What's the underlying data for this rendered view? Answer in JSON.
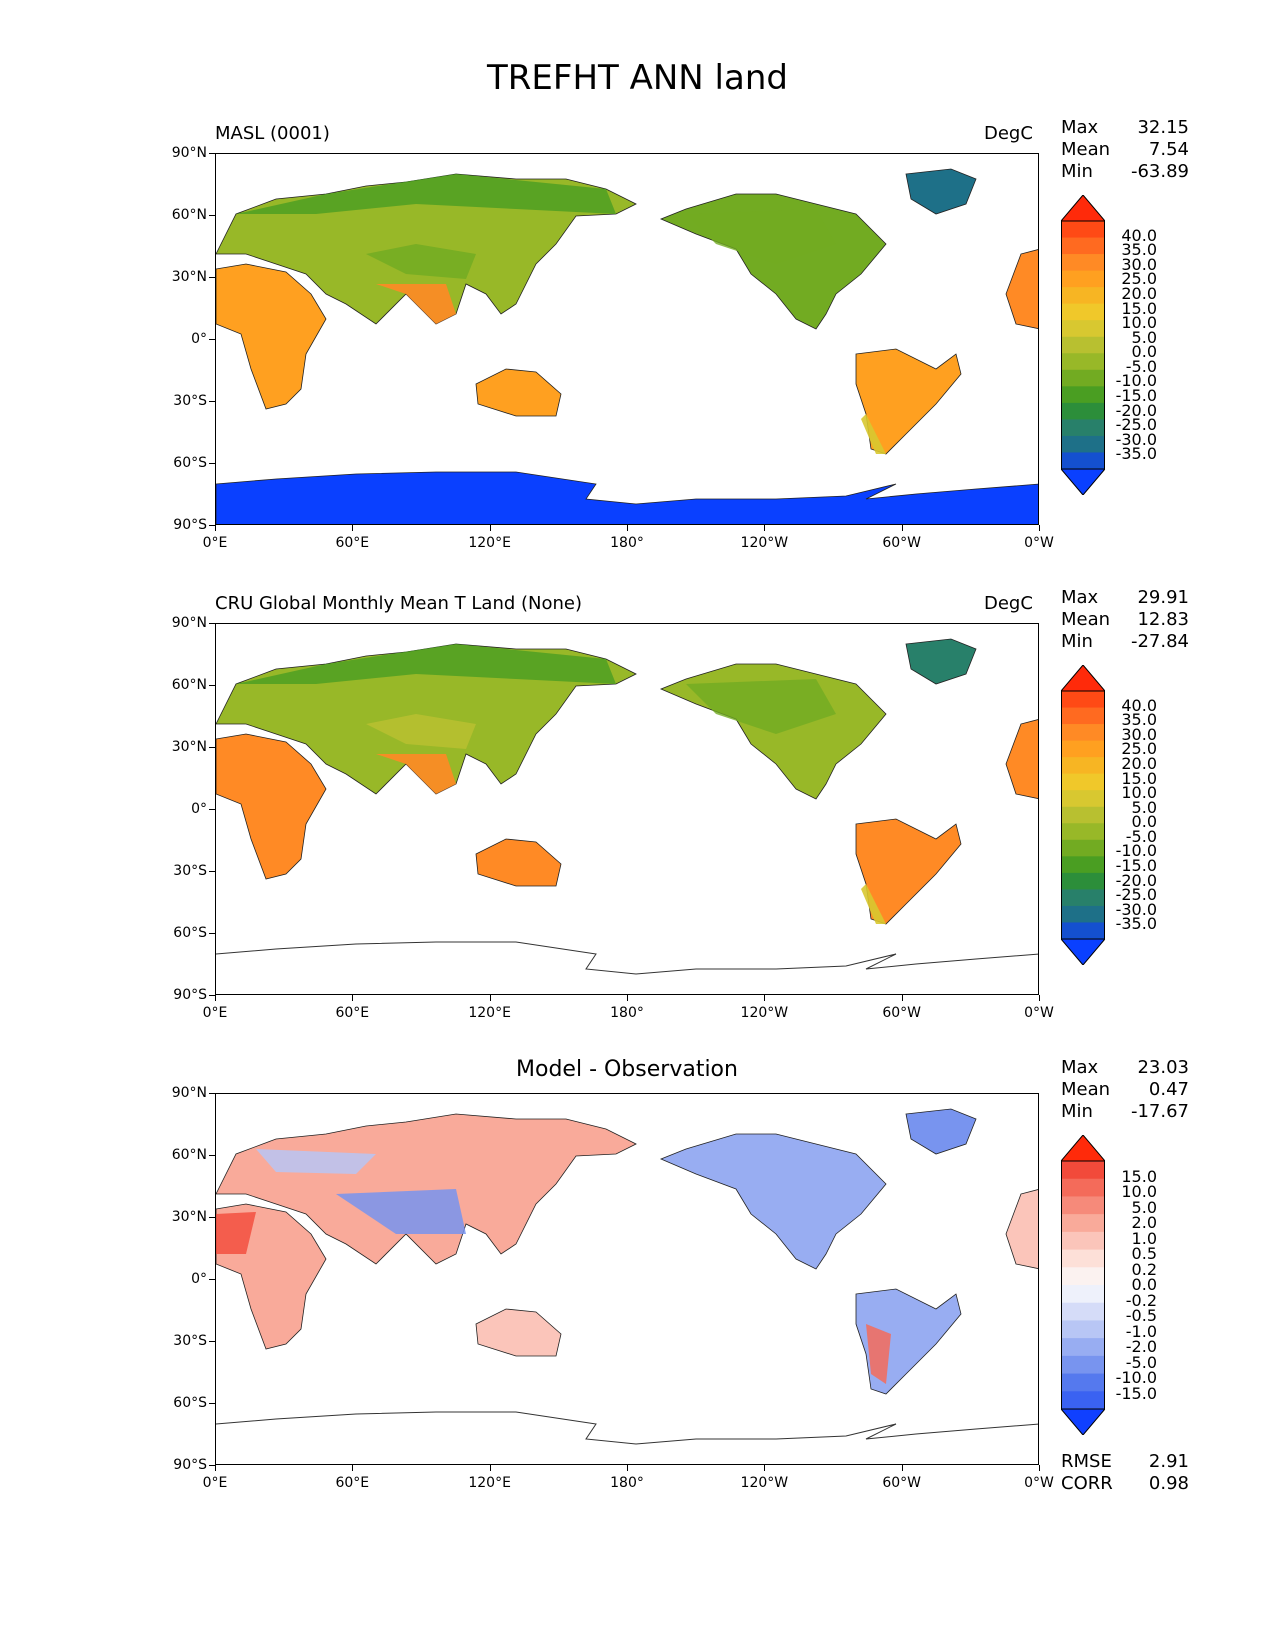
{
  "figure_title": "TREFHT ANN land",
  "axes": {
    "y_ticks": [
      "90°N",
      "60°N",
      "30°N",
      "0°",
      "30°S",
      "60°S",
      "90°S"
    ],
    "x_ticks": [
      "0°E",
      "60°E",
      "120°E",
      "180°",
      "120°W",
      "60°W",
      "0°W"
    ]
  },
  "panels": [
    {
      "id": "model",
      "title": "MASL (0001)",
      "units": "DegC",
      "stats": [
        {
          "k": "Max",
          "v": "32.15"
        },
        {
          "k": "Mean",
          "v": "7.54"
        },
        {
          "k": "Min",
          "v": "-63.89"
        }
      ],
      "colorbar": {
        "labels": [
          "40.0",
          "35.0",
          "30.0",
          "25.0",
          "20.0",
          "15.0",
          "10.0",
          "5.0",
          "0.0",
          "-5.0",
          "-10.0",
          "-15.0",
          "-20.0",
          "-25.0",
          "-30.0",
          "-35.0"
        ],
        "colors": [
          "#ff2a0a",
          "#ff4a15",
          "#ff6a20",
          "#ff8a25",
          "#ffa020",
          "#f7b523",
          "#f0c82a",
          "#d8c830",
          "#b8c030",
          "#98b828",
          "#72ab22",
          "#4a9e22",
          "#2c8e3a",
          "#28806a",
          "#1e7088",
          "#1450d0",
          "#0a40ff"
        ],
        "under": "#0a40ff",
        "over": "#ff2a0a"
      },
      "fill": "abs"
    },
    {
      "id": "obs",
      "title": "CRU Global Monthly Mean T Land (None)",
      "units": "DegC",
      "stats": [
        {
          "k": "Max",
          "v": "29.91"
        },
        {
          "k": "Mean",
          "v": "12.83"
        },
        {
          "k": "Min",
          "v": "-27.84"
        }
      ],
      "colorbar": {
        "labels": [
          "40.0",
          "35.0",
          "30.0",
          "25.0",
          "20.0",
          "15.0",
          "10.0",
          "5.0",
          "0.0",
          "-5.0",
          "-10.0",
          "-15.0",
          "-20.0",
          "-25.0",
          "-30.0",
          "-35.0"
        ],
        "colors": [
          "#ff2a0a",
          "#ff4a15",
          "#ff6a20",
          "#ff8a25",
          "#ffa020",
          "#f7b523",
          "#f0c82a",
          "#d8c830",
          "#b8c030",
          "#98b828",
          "#72ab22",
          "#4a9e22",
          "#2c8e3a",
          "#28806a",
          "#1e7088",
          "#1450d0",
          "#0a40ff"
        ],
        "under": "#0a40ff",
        "over": "#ff2a0a"
      },
      "fill": "obs"
    },
    {
      "id": "diff",
      "title": "Model - Observation",
      "units": "",
      "stats": [
        {
          "k": "Max",
          "v": "23.03"
        },
        {
          "k": "Mean",
          "v": "0.47"
        },
        {
          "k": "Min",
          "v": "-17.67"
        }
      ],
      "extra_stats": [
        {
          "k": "RMSE",
          "v": "2.91"
        },
        {
          "k": "CORR",
          "v": "0.98"
        }
      ],
      "colorbar": {
        "labels": [
          "15.0",
          "10.0",
          "5.0",
          "2.0",
          "1.0",
          "0.5",
          "0.2",
          "0.0",
          "-0.2",
          "-0.5",
          "-1.0",
          "-2.0",
          "-5.0",
          "-10.0",
          "-15.0"
        ],
        "colors": [
          "#ff2a0a",
          "#f24a3a",
          "#f46b5a",
          "#f68a7a",
          "#f9aa9a",
          "#fbc5ba",
          "#fde0d8",
          "#fbf2f0",
          "#eef1fb",
          "#d5dcf8",
          "#b8c6f5",
          "#98adf2",
          "#7894ef",
          "#5579ee",
          "#3a62f2",
          "#1c4cf6"
        ],
        "under": "#1040ff",
        "over": "#ff2a0a"
      },
      "fill": "diff"
    }
  ]
}
